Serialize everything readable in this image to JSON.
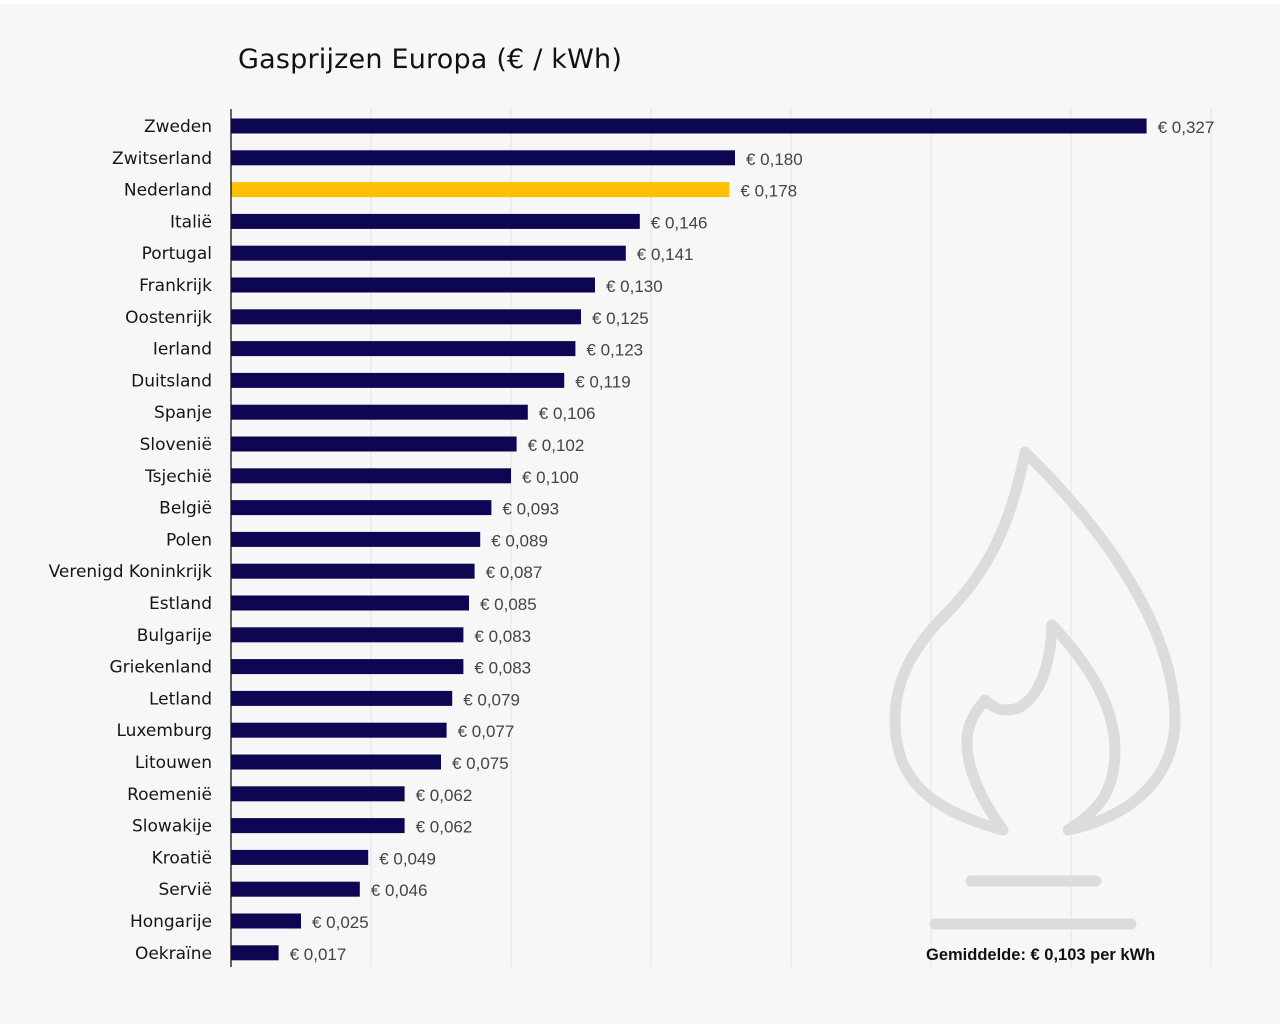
{
  "chart_data": {
    "type": "bar",
    "orientation": "horizontal",
    "title": "Gasprijzen Europa (€ / kWh)",
    "xlabel": "",
    "ylabel": "",
    "xlim": [
      0,
      0.35
    ],
    "grid": true,
    "gridline_step": 0.05,
    "categories": [
      "Zweden",
      "Zwitserland",
      "Nederland",
      "Italië",
      "Portugal",
      "Frankrijk",
      "Oostenrijk",
      "Ierland",
      "Duitsland",
      "Spanje",
      "Slovenië",
      "Tsjechië",
      "België",
      "Polen",
      "Verenigd Koninkrijk",
      "Estland",
      "Bulgarije",
      "Griekenland",
      "Letland",
      "Luxemburg",
      "Litouwen",
      "Roemenië",
      "Slowakije",
      "Kroatië",
      "Servië",
      "Hongarije",
      "Oekraïne"
    ],
    "values": [
      0.327,
      0.18,
      0.178,
      0.146,
      0.141,
      0.13,
      0.125,
      0.123,
      0.119,
      0.106,
      0.102,
      0.1,
      0.093,
      0.089,
      0.087,
      0.085,
      0.083,
      0.083,
      0.079,
      0.077,
      0.075,
      0.062,
      0.062,
      0.049,
      0.046,
      0.025,
      0.017
    ],
    "value_labels": [
      "€ 0,327",
      "€ 0,180",
      "€ 0,178",
      "€ 0,146",
      "€ 0,141",
      "€ 0,130",
      "€ 0,125",
      "€ 0,123",
      "€ 0,119",
      "€ 0,106",
      "€ 0,102",
      "€ 0,100",
      "€ 0,093",
      "€ 0,089",
      "€ 0,087",
      "€ 0,085",
      "€ 0,083",
      "€ 0,083",
      "€ 0,079",
      "€ 0,077",
      "€ 0,075",
      "€ 0,062",
      "€ 0,062",
      "€ 0,049",
      "€ 0,046",
      "€ 0,025",
      "€ 0,017"
    ],
    "highlight": "Nederland",
    "colors": {
      "bar": "#0d0652",
      "highlight": "#fcc005",
      "grid": "#e3e3e3",
      "axis": "#111111",
      "icon": "#dcdcdc"
    },
    "annotation": "Gemiddelde: € 0,103 per kWh"
  },
  "decoration": {
    "icon": "gas-flame-icon"
  }
}
